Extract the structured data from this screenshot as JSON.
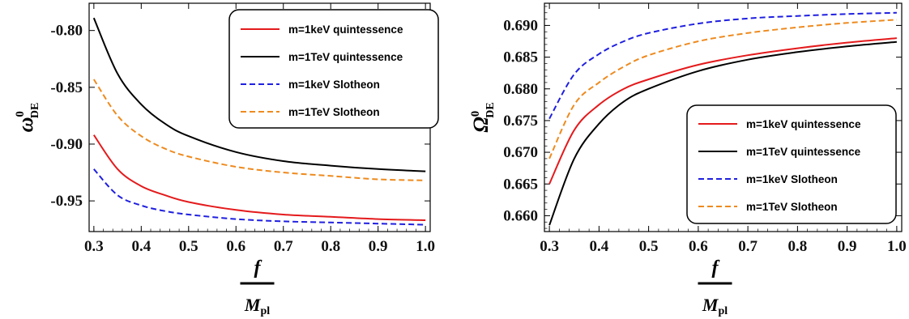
{
  "chart_data": [
    {
      "type": "line",
      "xlabel": {
        "numerator": "f",
        "denominator_base": "M",
        "denominator_sub": "pl"
      },
      "ylabel": {
        "base": "ω",
        "sup": "0",
        "sub": "DE"
      },
      "xlim": [
        0.29,
        1.01
      ],
      "ylim": [
        -0.977,
        -0.776
      ],
      "xticks": [
        "0.3",
        "0.4",
        "0.5",
        "0.6",
        "0.7",
        "0.8",
        "0.9",
        "1.0"
      ],
      "xtick_values": [
        0.3,
        0.4,
        0.5,
        0.6,
        0.7,
        0.8,
        0.9,
        1.0
      ],
      "yticks": [
        "-0.80",
        "-0.85",
        "-0.90",
        "-0.95"
      ],
      "ytick_values": [
        -0.8,
        -0.85,
        -0.9,
        -0.95
      ],
      "legend_position": "top-right",
      "x": [
        0.3,
        0.35,
        0.4,
        0.45,
        0.5,
        0.6,
        0.7,
        0.8,
        0.9,
        1.0
      ],
      "series": [
        {
          "name": "m=1keV quintessence",
          "color": "#e41a1c",
          "dash": "solid",
          "values": [
            -0.892,
            -0.922,
            -0.937,
            -0.945,
            -0.951,
            -0.958,
            -0.962,
            -0.964,
            -0.966,
            -0.967
          ]
        },
        {
          "name": "m=1TeV quintessence",
          "color": "#000000",
          "dash": "solid",
          "values": [
            -0.789,
            -0.838,
            -0.865,
            -0.882,
            -0.893,
            -0.907,
            -0.915,
            -0.919,
            -0.922,
            -0.924
          ]
        },
        {
          "name": "m=1keV Slotheon",
          "color": "#1f1fe0",
          "dash": "dashed",
          "values": [
            -0.922,
            -0.945,
            -0.954,
            -0.959,
            -0.962,
            -0.966,
            -0.968,
            -0.969,
            -0.97,
            -0.971
          ]
        },
        {
          "name": "m=1TeV Slotheon",
          "color": "#ee8a1e",
          "dash": "dashed",
          "values": [
            -0.843,
            -0.875,
            -0.893,
            -0.904,
            -0.911,
            -0.92,
            -0.925,
            -0.928,
            -0.931,
            -0.932
          ]
        }
      ]
    },
    {
      "type": "line",
      "xlabel": {
        "numerator": "f",
        "denominator_base": "M",
        "denominator_sub": "pl"
      },
      "ylabel": {
        "base": "Ω",
        "sup": "0",
        "sub": "DE"
      },
      "xlim": [
        0.29,
        1.01
      ],
      "ylim": [
        0.6575,
        0.6935
      ],
      "xticks": [
        "0.3",
        "0.4",
        "0.5",
        "0.6",
        "0.7",
        "0.8",
        "0.9",
        "1.0"
      ],
      "xtick_values": [
        0.3,
        0.4,
        0.5,
        0.6,
        0.7,
        0.8,
        0.9,
        1.0
      ],
      "yticks": [
        "0.660",
        "0.665",
        "0.670",
        "0.675",
        "0.680",
        "0.685",
        "0.690"
      ],
      "ytick_values": [
        0.66,
        0.665,
        0.67,
        0.675,
        0.68,
        0.685,
        0.69
      ],
      "legend_position": "bottom-right",
      "x": [
        0.3,
        0.35,
        0.4,
        0.45,
        0.5,
        0.6,
        0.7,
        0.8,
        0.9,
        1.0
      ],
      "series": [
        {
          "name": "m=1keV quintessence",
          "color": "#e41a1c",
          "dash": "solid",
          "values": [
            0.665,
            0.6735,
            0.6775,
            0.68,
            0.6815,
            0.6838,
            0.6853,
            0.6864,
            0.6873,
            0.688
          ]
        },
        {
          "name": "m=1TeV quintessence",
          "color": "#000000",
          "dash": "solid",
          "values": [
            0.6585,
            0.669,
            0.6745,
            0.678,
            0.68,
            0.6828,
            0.6846,
            0.6858,
            0.6867,
            0.6874
          ]
        },
        {
          "name": "m=1keV Slotheon",
          "color": "#1f1fe0",
          "dash": "dashed",
          "values": [
            0.6753,
            0.6823,
            0.6855,
            0.6875,
            0.6888,
            0.6903,
            0.6911,
            0.6915,
            0.6918,
            0.692
          ]
        },
        {
          "name": "m=1TeV Slotheon",
          "color": "#ee8a1e",
          "dash": "dashed",
          "values": [
            0.669,
            0.6775,
            0.681,
            0.6835,
            0.6853,
            0.6875,
            0.6888,
            0.6897,
            0.6904,
            0.6909
          ]
        }
      ]
    }
  ]
}
